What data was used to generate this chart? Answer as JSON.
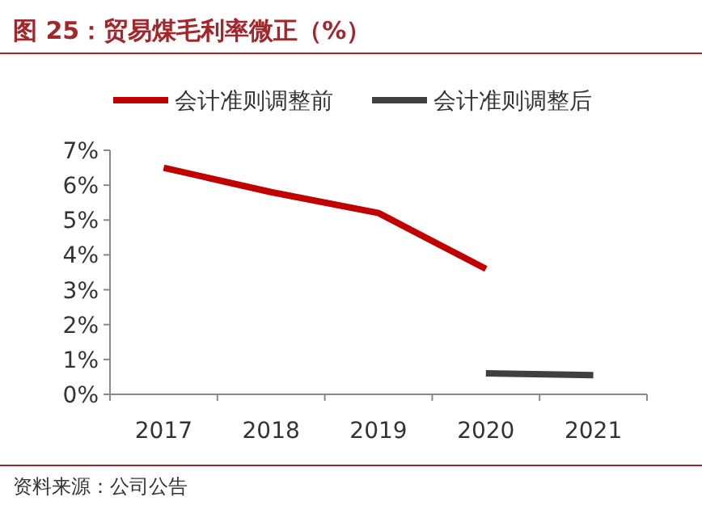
{
  "chart_data": {
    "type": "line",
    "title": "图 25：贸易煤毛利率微正（%）",
    "categories": [
      "2017",
      "2018",
      "2019",
      "2020",
      "2021"
    ],
    "series": [
      {
        "name": "会计准则调整前",
        "color": "#c00000",
        "values": [
          6.5,
          5.8,
          5.2,
          3.6,
          null
        ]
      },
      {
        "name": "会计准则调整后",
        "color": "#404040",
        "values": [
          null,
          null,
          null,
          0.6,
          0.55
        ]
      }
    ],
    "ylim": [
      0,
      7
    ],
    "yticks": [
      {
        "value": 0,
        "label": "0%"
      },
      {
        "value": 1,
        "label": "1%"
      },
      {
        "value": 2,
        "label": "2%"
      },
      {
        "value": 3,
        "label": "3%"
      },
      {
        "value": 4,
        "label": "4%"
      },
      {
        "value": 5,
        "label": "5%"
      },
      {
        "value": 6,
        "label": "6%"
      },
      {
        "value": 7,
        "label": "7%"
      }
    ],
    "legend": "top",
    "grid": false,
    "marker": "none",
    "line_style": "solid",
    "annotations": [
      "资料来源：公司公告"
    ]
  }
}
